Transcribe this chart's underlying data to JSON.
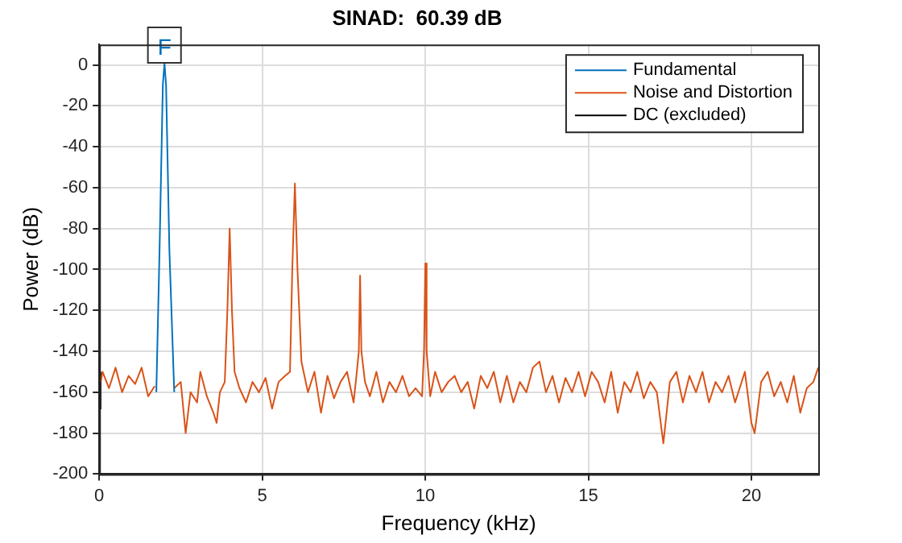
{
  "chart_data": {
    "type": "line",
    "title": "SINAD:  60.39 dB",
    "xlabel": "Frequency (kHz)",
    "ylabel": "Power (dB)",
    "xlim": [
      0,
      22.05
    ],
    "xticks": [
      0,
      5,
      10,
      15,
      20
    ],
    "ylim": [
      -200,
      10
    ],
    "yticks": [
      -200,
      -180,
      -160,
      -140,
      -120,
      -100,
      -80,
      -60,
      -40,
      -20,
      0
    ],
    "grid": true,
    "legend": "top right",
    "marker": "none",
    "line_style": "solid",
    "annotations": [
      {
        "text": "F",
        "x": 2,
        "y": 1
      }
    ],
    "series": [
      {
        "name": "Fundamental",
        "color": "#0072bd",
        "x": [
          1.75,
          1.85,
          1.95,
          2.0,
          2.05,
          2.15,
          2.3
        ],
        "values": [
          -160,
          -90,
          -10,
          1,
          -10,
          -90,
          -160
        ]
      },
      {
        "name": "Noise and Distortion",
        "color": "#d95319",
        "x": [
          0.05,
          0.1,
          0.3,
          0.5,
          0.7,
          0.9,
          1.1,
          1.3,
          1.5,
          1.7,
          null,
          2.3,
          2.5,
          2.65,
          2.8,
          3.0,
          3.1,
          3.3,
          3.5,
          3.6,
          3.7,
          3.85,
          3.93,
          4.0,
          4.07,
          4.15,
          4.3,
          4.5,
          4.7,
          4.9,
          5.1,
          5.3,
          5.5,
          5.7,
          5.85,
          5.92,
          6.0,
          6.08,
          6.2,
          6.4,
          6.6,
          6.8,
          7.0,
          7.2,
          7.4,
          7.6,
          7.8,
          7.9,
          7.96,
          8.0,
          8.04,
          8.15,
          8.3,
          8.5,
          8.7,
          8.9,
          9.1,
          9.3,
          9.5,
          9.7,
          9.9,
          9.96,
          10.0,
          10.04,
          10.15,
          10.3,
          10.5,
          10.7,
          10.9,
          11.1,
          11.3,
          11.5,
          11.7,
          11.9,
          12.1,
          12.3,
          12.5,
          12.7,
          12.9,
          13.1,
          13.3,
          13.5,
          13.7,
          13.9,
          14.1,
          14.3,
          14.5,
          14.7,
          14.9,
          15.1,
          15.3,
          15.5,
          15.7,
          15.9,
          16.1,
          16.3,
          16.5,
          16.7,
          16.9,
          17.1,
          17.3,
          17.5,
          17.7,
          17.9,
          18.1,
          18.3,
          18.5,
          18.7,
          18.9,
          19.1,
          19.3,
          19.5,
          19.8,
          20.0,
          20.1,
          20.3,
          20.5,
          20.7,
          20.9,
          21.1,
          21.3,
          21.5,
          21.7,
          21.9,
          22.05
        ],
        "values": [
          -155,
          -150,
          -158,
          -148,
          -160,
          -152,
          -156,
          -148,
          -162,
          -157,
          null,
          -158,
          -155,
          -180,
          -160,
          -165,
          -150,
          -162,
          -170,
          -175,
          -160,
          -155,
          -120,
          -80,
          -120,
          -150,
          -158,
          -165,
          -155,
          -160,
          -153,
          -168,
          -155,
          -152,
          -150,
          -100,
          -58,
          -100,
          -145,
          -160,
          -150,
          -170,
          -152,
          -163,
          -155,
          -150,
          -165,
          -150,
          -140,
          -103,
          -140,
          -155,
          -162,
          -150,
          -165,
          -155,
          -160,
          -152,
          -162,
          -158,
          -162,
          -140,
          -97,
          -140,
          -162,
          -150,
          -160,
          -155,
          -152,
          -160,
          -155,
          -168,
          -152,
          -158,
          -150,
          -165,
          -152,
          -165,
          -155,
          -160,
          -148,
          -145,
          -160,
          -152,
          -165,
          -153,
          -160,
          -150,
          -162,
          -150,
          -155,
          -165,
          -150,
          -170,
          -155,
          -160,
          -150,
          -163,
          -155,
          -160,
          -185,
          -155,
          -150,
          -165,
          -152,
          -160,
          -150,
          -165,
          -155,
          -160,
          -152,
          -165,
          -150,
          -175,
          -180,
          -155,
          -150,
          -162,
          -155,
          -165,
          -152,
          -170,
          -158,
          -155,
          -148
        ]
      },
      {
        "name": "DC (excluded)",
        "color": "#000000",
        "x": [
          0,
          0.02,
          0.04
        ],
        "values": [
          -145,
          -168,
          -150
        ]
      }
    ]
  }
}
